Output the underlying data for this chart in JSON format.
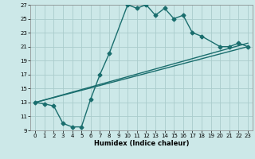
{
  "xlabel": "Humidex (Indice chaleur)",
  "bg_color": "#cce8e8",
  "grid_color": "#aacccc",
  "line_color": "#1a6e6e",
  "xlim": [
    -0.5,
    23.5
  ],
  "ylim": [
    9,
    27
  ],
  "xticks": [
    0,
    1,
    2,
    3,
    4,
    5,
    6,
    7,
    8,
    9,
    10,
    11,
    12,
    13,
    14,
    15,
    16,
    17,
    18,
    19,
    20,
    21,
    22,
    23
  ],
  "yticks": [
    9,
    11,
    13,
    15,
    17,
    19,
    21,
    23,
    25,
    27
  ],
  "series": [
    {
      "x": [
        0,
        1,
        2,
        3,
        4,
        5,
        6,
        7,
        8,
        10,
        11,
        12,
        13,
        14,
        15,
        16,
        17,
        18,
        20,
        21,
        22,
        23
      ],
      "y": [
        13,
        12.8,
        12.5,
        10,
        9.5,
        9.5,
        13.5,
        17,
        20,
        27,
        26.5,
        27,
        25.5,
        26.5,
        25,
        25.5,
        23,
        22.5,
        21,
        21,
        21.5,
        21
      ],
      "marker": "D",
      "markersize": 2.5,
      "linewidth": 1.0
    },
    {
      "x": [
        0,
        23
      ],
      "y": [
        13,
        21
      ],
      "marker": null,
      "markersize": 0,
      "linewidth": 1.0
    },
    {
      "x": [
        0,
        23
      ],
      "y": [
        13,
        21.5
      ],
      "marker": null,
      "markersize": 0,
      "linewidth": 1.0
    }
  ]
}
